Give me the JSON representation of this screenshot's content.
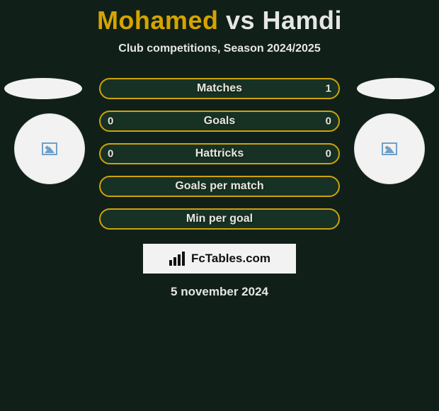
{
  "colors": {
    "page_bg": "#102018",
    "p1_color": "#d6a400",
    "p2_color": "#e6e6e6",
    "vs_color": "#e6e6e6",
    "subtitle_color": "#e6e6e6",
    "row_bg": "#173224",
    "row_border": "#cfa10a",
    "row_text": "#e8e6df",
    "flag_bg": "#f2f2f2",
    "avatar_bg": "#f2f2f2",
    "avatar_border": "#e0e0e0",
    "placeholder_color": "#6fa0c8",
    "watermark_bg": "#f2f2f2",
    "watermark_text": "#111111",
    "date_color": "#e6e6e6"
  },
  "header": {
    "player1": "Mohamed",
    "vs": "vs",
    "player2": "Hamdi",
    "subtitle": "Club competitions, Season 2024/2025"
  },
  "rows": [
    {
      "label": "Matches",
      "left": "",
      "right": "1"
    },
    {
      "label": "Goals",
      "left": "0",
      "right": "0"
    },
    {
      "label": "Hattricks",
      "left": "0",
      "right": "0"
    },
    {
      "label": "Goals per match",
      "left": "",
      "right": ""
    },
    {
      "label": "Min per goal",
      "left": "",
      "right": ""
    }
  ],
  "watermark": {
    "text": "FcTables.com"
  },
  "date": "5 november 2024"
}
